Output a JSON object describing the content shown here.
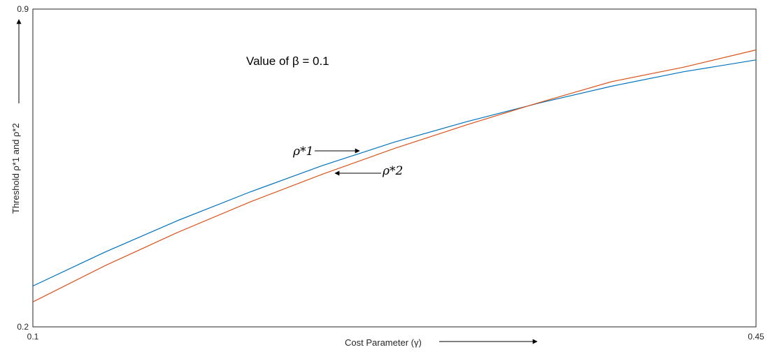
{
  "chart_data": {
    "type": "line",
    "x_range": [
      0.1,
      0.45
    ],
    "y_range": [
      0.2,
      0.9
    ],
    "x_tick_labels": [
      "0.1",
      "0.45"
    ],
    "y_tick_labels": [
      "0.2",
      "0.9"
    ],
    "xlabel": "Cost Parameter (γ)",
    "ylabel": "Threshold ρ*1 and ρ*2",
    "annotation_text": "Value of β = 0.1",
    "grid": false,
    "series": [
      {
        "name": "ρ*1",
        "color": "#0072BD",
        "x": [
          0.1,
          0.135,
          0.17,
          0.205,
          0.24,
          0.275,
          0.31,
          0.345,
          0.38,
          0.415,
          0.45
        ],
        "y": [
          0.29,
          0.365,
          0.434,
          0.497,
          0.555,
          0.607,
          0.652,
          0.693,
          0.73,
          0.762,
          0.788
        ]
      },
      {
        "name": "ρ*2",
        "color": "#D95319",
        "x": [
          0.1,
          0.135,
          0.17,
          0.205,
          0.24,
          0.275,
          0.31,
          0.345,
          0.38,
          0.415,
          0.45
        ],
        "y": [
          0.255,
          0.335,
          0.408,
          0.475,
          0.536,
          0.593,
          0.645,
          0.694,
          0.74,
          0.772,
          0.81
        ]
      }
    ]
  }
}
